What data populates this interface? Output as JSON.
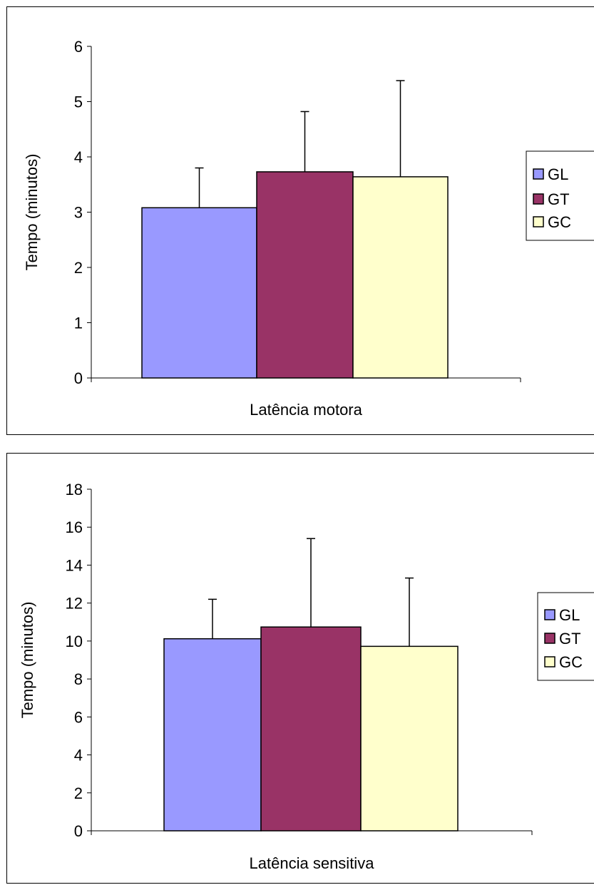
{
  "chart_data": [
    {
      "type": "bar",
      "categories": [
        "Latência motora"
      ],
      "xlabel": "Latência motora",
      "ylabel": "Tempo (minutos)",
      "ylim": [
        0,
        6
      ],
      "yticks": [
        0,
        1,
        2,
        3,
        4,
        5,
        6
      ],
      "grid": false,
      "legend_position": "right",
      "series": [
        {
          "name": "GL",
          "values": [
            3.08
          ],
          "error": [
            0.72
          ],
          "color": "#9999ff"
        },
        {
          "name": "GT",
          "values": [
            3.73
          ],
          "error": [
            1.09
          ],
          "color": "#993366"
        },
        {
          "name": "GC",
          "values": [
            3.64
          ],
          "error": [
            1.74
          ],
          "color": "#ffffcc"
        }
      ]
    },
    {
      "type": "bar",
      "categories": [
        "Latência sensitiva"
      ],
      "xlabel": "Latência sensitiva",
      "ylabel": "Tempo (minutos)",
      "ylim": [
        0,
        18
      ],
      "yticks": [
        0,
        2,
        4,
        6,
        8,
        10,
        12,
        14,
        16,
        18
      ],
      "grid": false,
      "legend_position": "right",
      "series": [
        {
          "name": "GL",
          "values": [
            10.12
          ],
          "error": [
            2.08
          ],
          "color": "#9999ff"
        },
        {
          "name": "GT",
          "values": [
            10.74
          ],
          "error": [
            4.66
          ],
          "color": "#993366"
        },
        {
          "name": "GC",
          "values": [
            9.72
          ],
          "error": [
            3.6
          ],
          "color": "#ffffcc"
        }
      ]
    }
  ]
}
